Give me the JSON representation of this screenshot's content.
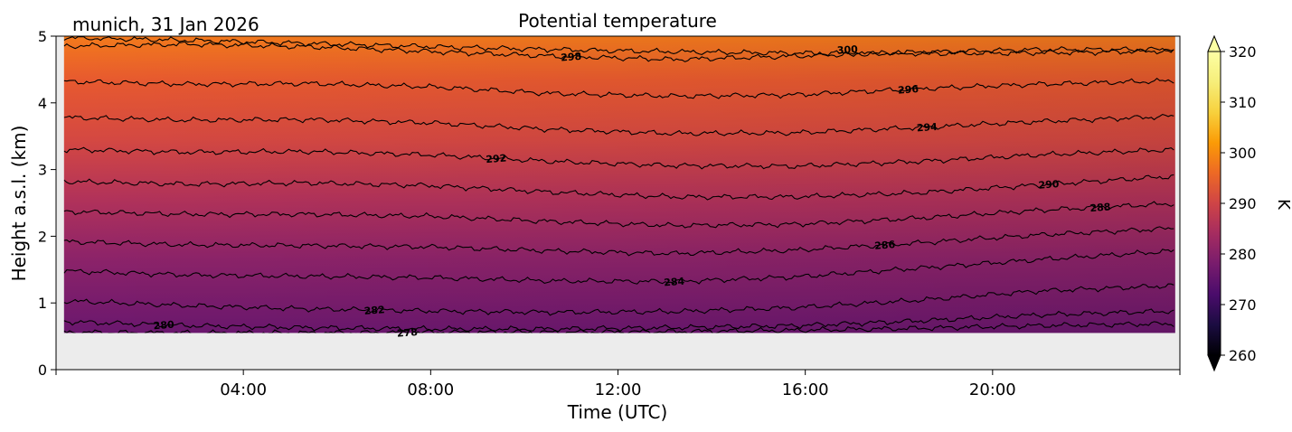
{
  "chart_data": {
    "type": "heatmap",
    "title": "Potential temperature",
    "subtitle": "munich, 31 Jan 2026",
    "xlabel": "Time (UTC)",
    "ylabel": "Height a.s.l. (km)",
    "xlim_hours": [
      0,
      24
    ],
    "ylim": [
      0,
      5
    ],
    "data_extent": {
      "x_hours": [
        0.17,
        23.9
      ],
      "y_km": [
        0.55,
        5.0
      ]
    },
    "x_ticks": [
      {
        "hour": 4,
        "label": "04:00"
      },
      {
        "hour": 8,
        "label": "08:00"
      },
      {
        "hour": 12,
        "label": "12:00"
      },
      {
        "hour": 16,
        "label": "16:00"
      },
      {
        "hour": 20,
        "label": "20:00"
      }
    ],
    "y_ticks": [
      {
        "value": 0,
        "label": "0"
      },
      {
        "value": 1,
        "label": "1"
      },
      {
        "value": 2,
        "label": "2"
      },
      {
        "value": 3,
        "label": "3"
      },
      {
        "value": 4,
        "label": "4"
      },
      {
        "value": 5,
        "label": "5"
      }
    ],
    "contours": [
      {
        "level": 278,
        "label": "278",
        "heights_km": [
          0.56,
          0.55,
          0.55,
          0.56,
          0.56,
          0.57,
          0.59,
          0.62,
          0.66,
          0.69
        ],
        "label_at_hour": 7.5
      },
      {
        "level": 280,
        "label": "280",
        "heights_km": [
          0.72,
          0.66,
          0.63,
          0.61,
          0.61,
          0.63,
          0.66,
          0.73,
          0.82,
          0.88
        ],
        "label_at_hour": 2.3
      },
      {
        "level": 282,
        "label": "282",
        "heights_km": [
          1.03,
          0.96,
          0.91,
          0.88,
          0.86,
          0.87,
          0.93,
          1.04,
          1.18,
          1.26
        ],
        "label_at_hour": 6.8
      },
      {
        "level": 284,
        "label": "284",
        "heights_km": [
          1.48,
          1.42,
          1.4,
          1.38,
          1.33,
          1.32,
          1.39,
          1.52,
          1.65,
          1.78
        ],
        "label_at_hour": 13.2
      },
      {
        "level": 286,
        "label": "286",
        "heights_km": [
          1.92,
          1.87,
          1.86,
          1.84,
          1.78,
          1.74,
          1.79,
          1.9,
          2.02,
          2.12
        ],
        "label_at_hour": 17.7
      },
      {
        "level": 288,
        "label": "288",
        "heights_km": [
          2.37,
          2.33,
          2.33,
          2.3,
          2.22,
          2.16,
          2.18,
          2.27,
          2.39,
          2.49
        ],
        "label_at_hour": 22.3
      },
      {
        "level": 290,
        "label": "290",
        "heights_km": [
          2.82,
          2.78,
          2.8,
          2.76,
          2.66,
          2.59,
          2.59,
          2.65,
          2.77,
          2.9
        ],
        "label_at_hour": 21.2
      },
      {
        "level": 292,
        "label": "292",
        "heights_km": [
          3.3,
          3.26,
          3.27,
          3.22,
          3.12,
          3.06,
          3.05,
          3.12,
          3.22,
          3.3
        ],
        "label_at_hour": 9.4
      },
      {
        "level": 294,
        "label": "294",
        "heights_km": [
          3.78,
          3.74,
          3.75,
          3.7,
          3.6,
          3.54,
          3.55,
          3.63,
          3.72,
          3.8
        ],
        "label_at_hour": 18.6
      },
      {
        "level": 296,
        "label": "296",
        "heights_km": [
          4.32,
          4.28,
          4.29,
          4.24,
          4.14,
          4.1,
          4.12,
          4.21,
          4.28,
          4.33
        ],
        "label_at_hour": 18.2
      },
      {
        "level": 298,
        "label": "298",
        "heights_km": [
          4.85,
          4.88,
          4.84,
          4.77,
          4.7,
          4.65,
          4.7,
          4.76,
          4.8,
          4.8
        ],
        "label_at_hour": 11.0
      },
      {
        "level": 300,
        "label": "300",
        "heights_km": [
          null,
          null,
          null,
          null,
          null,
          null,
          null,
          null,
          null,
          null
        ],
        "label_at_hour": 16.9,
        "label_height_km": 4.8
      }
    ],
    "contour_hours": [
      0.17,
      2.8,
      5.4,
      8.0,
      10.6,
      13.2,
      15.8,
      18.4,
      21.0,
      23.9
    ],
    "colorbar": {
      "label": "K",
      "vmin": 260,
      "vmax": 320,
      "ticks": [
        "260",
        "270",
        "280",
        "290",
        "300",
        "310",
        "320"
      ],
      "extend": "both",
      "colormap": "inferno"
    },
    "missing_color": "#ececec"
  }
}
